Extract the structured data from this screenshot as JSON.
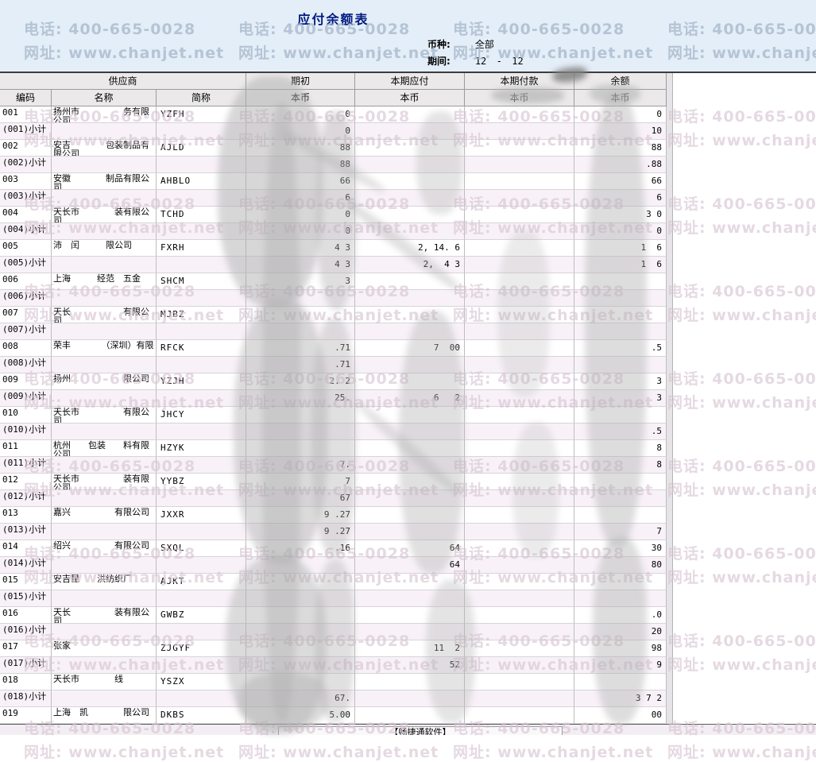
{
  "header": {
    "title": "应付余额表",
    "currency_label": "币种:",
    "currency_value": "全部",
    "period_label": "期间:",
    "period_from": "12",
    "period_separator": "-",
    "period_to": "12"
  },
  "watermark": {
    "phone": "电话: 400-665-0028",
    "website": "网址: www.chanjet.net"
  },
  "table": {
    "group_headers": [
      "供应商",
      "期初",
      "本期应付",
      "本期付款",
      "余额"
    ],
    "sub_headers": [
      "编码",
      "名称",
      "简称",
      "本币",
      "本币",
      "本币",
      "本币"
    ],
    "rows": [
      {
        "code": "001",
        "name": "扬州市　　　　　务有限公司",
        "abbr": "YZFH",
        "opening": "0",
        "payable": "",
        "payment": "",
        "balance": "0",
        "subtotal": false
      },
      {
        "code": "(001)小计",
        "name": "",
        "abbr": "",
        "opening": "0",
        "payable": "",
        "payment": "",
        "balance": "10",
        "subtotal": true
      },
      {
        "code": "002",
        "name": "安吉　　　　包装制品有限公司",
        "abbr": "AJLD",
        "opening": "88",
        "payable": "",
        "payment": "",
        "balance": "88",
        "subtotal": false
      },
      {
        "code": "(002)小计",
        "name": "",
        "abbr": "",
        "opening": "88",
        "payable": "",
        "payment": "",
        "balance": ".88",
        "subtotal": true
      },
      {
        "code": "003",
        "name": "安徽　　　　制品有限公司",
        "abbr": "AHBLO",
        "opening": "66",
        "payable": "",
        "payment": "",
        "balance": "66",
        "subtotal": false
      },
      {
        "code": "(003)小计",
        "name": "",
        "abbr": "",
        "opening": "6",
        "payable": "",
        "payment": "",
        "balance": "6",
        "subtotal": true
      },
      {
        "code": "004",
        "name": "天长市　　　　装有限公司",
        "abbr": "TCHD",
        "opening": "0",
        "payable": "",
        "payment": "",
        "balance": "3 0",
        "subtotal": false
      },
      {
        "code": "(004)小计",
        "name": "",
        "abbr": "",
        "opening": "0",
        "payable": "",
        "payment": "",
        "balance": "0",
        "subtotal": true
      },
      {
        "code": "005",
        "name": "沛　闰　　　限公司",
        "abbr": "FXRH",
        "opening": "4 3",
        "payable": "2, 14. 6",
        "payment": "",
        "balance": "1  6",
        "subtotal": false
      },
      {
        "code": "(005)小计",
        "name": "",
        "abbr": "",
        "opening": "4 3",
        "payable": "2,  4 3",
        "payment": "",
        "balance": "1  6",
        "subtotal": true
      },
      {
        "code": "006",
        "name": "上海　　　经范　五金　　",
        "abbr": "SHCM",
        "opening": "3",
        "payable": "",
        "payment": "",
        "balance": "",
        "subtotal": false
      },
      {
        "code": "(006)小计",
        "name": "",
        "abbr": "",
        "opening": "",
        "payable": "",
        "payment": "",
        "balance": "",
        "subtotal": true
      },
      {
        "code": "007",
        "name": "天长　　　　　　有限公司",
        "abbr": "MJBZ",
        "opening": "",
        "payable": "",
        "payment": "",
        "balance": "",
        "subtotal": false
      },
      {
        "code": "(007)小计",
        "name": "",
        "abbr": "",
        "opening": "",
        "payable": "",
        "payment": "",
        "balance": "",
        "subtotal": true
      },
      {
        "code": "008",
        "name": "荣丰　　　　（深圳）有限",
        "abbr": "RFCK",
        "opening": ".71",
        "payable": "7  00",
        "payment": "",
        "balance": ".5",
        "subtotal": false
      },
      {
        "code": "(008)小计",
        "name": "",
        "abbr": "",
        "opening": ".71",
        "payable": "",
        "payment": "",
        "balance": "",
        "subtotal": true
      },
      {
        "code": "009",
        "name": "扬州　　　　　　限公司",
        "abbr": "YZJH",
        "opening": "2. 2",
        "payable": "",
        "payment": "",
        "balance": "3",
        "subtotal": false
      },
      {
        "code": "(009)小计",
        "name": "",
        "abbr": "",
        "opening": "25.",
        "payable": "6   2",
        "payment": "",
        "balance": "3",
        "subtotal": true
      },
      {
        "code": "010",
        "name": "天长市　　　　　有限公司",
        "abbr": "JHCY",
        "opening": "",
        "payable": "",
        "payment": "",
        "balance": "",
        "subtotal": false
      },
      {
        "code": "(010)小计",
        "name": "",
        "abbr": "",
        "opening": "",
        "payable": "",
        "payment": "",
        "balance": ".5",
        "subtotal": true
      },
      {
        "code": "011",
        "name": "杭州　　包装　　料有限公司",
        "abbr": "HZYK",
        "opening": "",
        "payable": "",
        "payment": "",
        "balance": "8",
        "subtotal": false
      },
      {
        "code": "(011)小计",
        "name": "",
        "abbr": "",
        "opening": "7.",
        "payable": "",
        "payment": "",
        "balance": "8",
        "subtotal": true
      },
      {
        "code": "012",
        "name": "天长市　　　　　装有限公司",
        "abbr": "YYBZ",
        "opening": "7",
        "payable": "",
        "payment": "",
        "balance": "",
        "subtotal": false
      },
      {
        "code": "(012)小计",
        "name": "",
        "abbr": "",
        "opening": "67",
        "payable": "",
        "payment": "",
        "balance": "",
        "subtotal": true
      },
      {
        "code": "013",
        "name": "嘉兴　　　　　有限公司",
        "abbr": "JXXR",
        "opening": "9 .27",
        "payable": "",
        "payment": "",
        "balance": "",
        "subtotal": false
      },
      {
        "code": "(013)小计",
        "name": "",
        "abbr": "",
        "opening": "9 .27",
        "payable": "",
        "payment": "",
        "balance": "7",
        "subtotal": true
      },
      {
        "code": "014",
        "name": "绍兴　　　　　有限公司",
        "abbr": "SXQL",
        "opening": ".16",
        "payable": "64",
        "payment": "",
        "balance": "30",
        "subtotal": false
      },
      {
        "code": "(014)小计",
        "name": "",
        "abbr": "",
        "opening": "",
        "payable": "64",
        "payment": "",
        "balance": "80",
        "subtotal": true
      },
      {
        "code": "015",
        "name": "安吉昆　　洪纺织厂",
        "abbr": "AJKT",
        "opening": "",
        "payable": "",
        "payment": "",
        "balance": "",
        "subtotal": false
      },
      {
        "code": "(015)小计",
        "name": "",
        "abbr": "",
        "opening": "",
        "payable": "",
        "payment": "",
        "balance": "",
        "subtotal": true
      },
      {
        "code": "016",
        "name": "天长　　　　　装有限公司",
        "abbr": "GWBZ",
        "opening": "",
        "payable": "",
        "payment": "",
        "balance": ".0",
        "subtotal": false
      },
      {
        "code": "(016)小计",
        "name": "",
        "abbr": "",
        "opening": "",
        "payable": "",
        "payment": "",
        "balance": "20",
        "subtotal": true
      },
      {
        "code": "017",
        "name": "张家　　　",
        "abbr": "ZJGYF",
        "opening": "",
        "payable": "11  2",
        "payment": "",
        "balance": "98",
        "subtotal": false
      },
      {
        "code": "(017)小计",
        "name": "",
        "abbr": "",
        "opening": "",
        "payable": "52",
        "payment": "",
        "balance": "9",
        "subtotal": true
      },
      {
        "code": "018",
        "name": "天长市　　　　线",
        "abbr": "YSZX",
        "opening": "",
        "payable": "",
        "payment": "",
        "balance": "",
        "subtotal": false
      },
      {
        "code": "(018)小计",
        "name": "",
        "abbr": "",
        "opening": "67.",
        "payable": "",
        "payment": "",
        "balance": "3 7 2",
        "subtotal": true
      },
      {
        "code": "019",
        "name": "上海　凯　　　　限公司",
        "abbr": "DKBS",
        "opening": "5.00",
        "payable": "",
        "payment": "",
        "balance": "00",
        "subtotal": false
      }
    ]
  },
  "footer": {
    "brand": "【畅捷通软件】"
  }
}
